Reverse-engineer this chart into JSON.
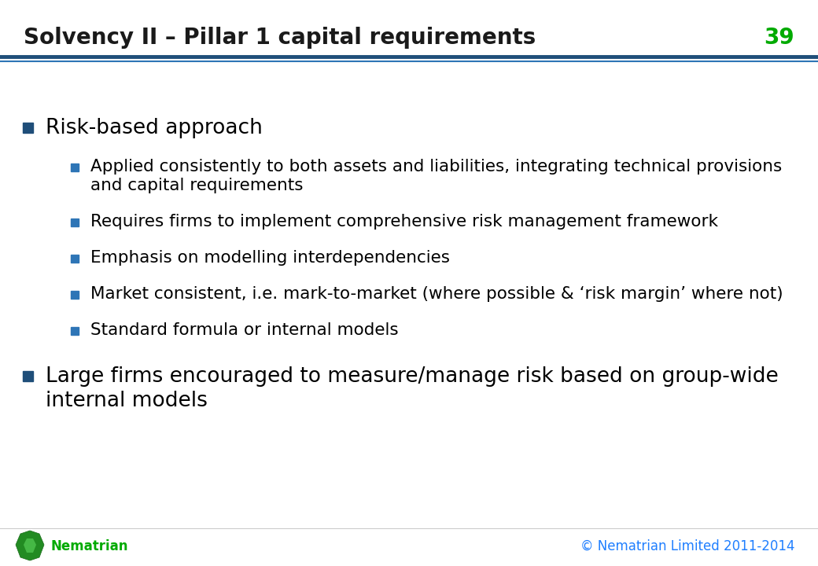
{
  "title": "Solvency II – Pillar 1 capital requirements",
  "slide_number": "39",
  "title_color": "#1A1A1A",
  "title_fontsize": 20,
  "slide_number_color": "#00AA00",
  "slide_number_fontsize": 20,
  "header_line_color_top": "#1F4E79",
  "header_line_color_bottom": "#2E75B6",
  "background_color": "#FFFFFF",
  "bullet_color": "#1F4E79",
  "sub_bullet_color": "#2E75B6",
  "text_color": "#000000",
  "footer_text": "© Nematrian Limited 2011-2014",
  "footer_color": "#1F7FFF",
  "footer_brand": "Nematrian",
  "footer_brand_color": "#00AA00",
  "main_bullet_fontsize": 19,
  "sub_bullet_fontsize": 15.5,
  "main_bullets": [
    {
      "text": "Risk-based approach",
      "sub_bullets": [
        "Applied consistently to both assets and liabilities, integrating technical provisions\nand capital requirements",
        "Requires firms to implement comprehensive risk management framework",
        "Emphasis on modelling interdependencies",
        "Market consistent, i.e. mark-to-market (where possible & ‘risk margin’ where not)",
        "Standard formula or internal models"
      ]
    },
    {
      "text": "Large firms encouraged to measure/manage risk based on group-wide\ninternal models",
      "sub_bullets": []
    }
  ]
}
